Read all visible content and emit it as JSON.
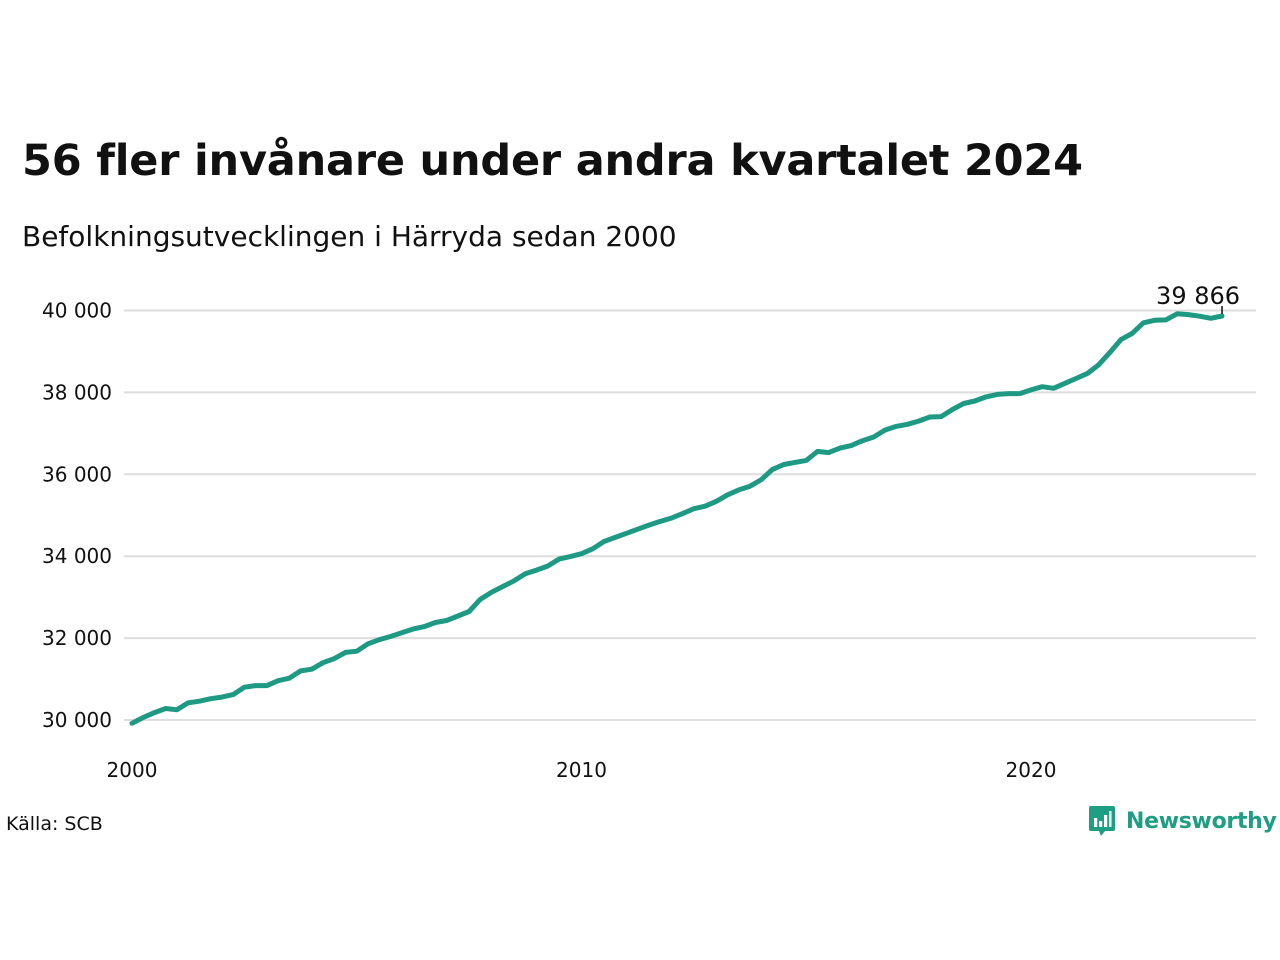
{
  "header": {
    "title": "56 fler invånare under andra kvartalet 2024",
    "subtitle": "Befolkningsutvecklingen i Härryda sedan 2000"
  },
  "footer": {
    "source": "Källa: SCB",
    "brand": "Newsworthy"
  },
  "colors": {
    "line": "#1e9a84",
    "brand": "#1e9f83",
    "grid": "#dddddd",
    "text": "#111111"
  },
  "icons": {
    "brand_logo": "newsworthy-logo-icon"
  },
  "chart_data": {
    "type": "line",
    "title": "56 fler invånare under andra kvartalet 2024",
    "subtitle": "Befolkningsutvecklingen i Härryda sedan 2000",
    "xlabel": "",
    "ylabel": "",
    "x_ticks": [
      2000,
      2010,
      2020
    ],
    "x_tick_labels": [
      "2000",
      "2010",
      "2020"
    ],
    "y_ticks": [
      30000,
      32000,
      34000,
      36000,
      38000,
      40000
    ],
    "y_tick_labels": [
      "30 000",
      "32 000",
      "34 000",
      "36 000",
      "38 000",
      "40 000"
    ],
    "xlim": [
      2000,
      2025.5
    ],
    "ylim": [
      29650,
      40250
    ],
    "grid": "horizontal",
    "legend": "none",
    "end_label": "39 866",
    "series": [
      {
        "x": [
          2000.0,
          2000.25,
          2000.5,
          2000.75,
          2001.0,
          2001.25,
          2001.5,
          2001.75,
          2002.0,
          2002.25,
          2002.5,
          2002.75,
          2003.0,
          2003.25,
          2003.5,
          2003.75,
          2004.0,
          2004.25,
          2004.5,
          2004.75,
          2005.0,
          2005.25,
          2005.5,
          2005.75,
          2006.0,
          2006.25,
          2006.5,
          2006.75,
          2007.0,
          2007.25,
          2007.5,
          2007.75,
          2008.0,
          2008.25,
          2008.5,
          2008.75,
          2009.0,
          2009.25,
          2009.5,
          2009.75,
          2010.0,
          2010.25,
          2010.5,
          2010.75,
          2011.0,
          2011.25,
          2011.5,
          2011.75,
          2012.0,
          2012.25,
          2012.5,
          2012.75,
          2013.0,
          2013.25,
          2013.5,
          2013.75,
          2014.0,
          2014.25,
          2014.5,
          2014.75,
          2015.0,
          2015.25,
          2015.5,
          2015.75,
          2016.0,
          2016.25,
          2016.5,
          2016.75,
          2017.0,
          2017.25,
          2017.5,
          2017.75,
          2018.0,
          2018.25,
          2018.5,
          2018.75,
          2019.0,
          2019.25,
          2019.5,
          2019.75,
          2020.0,
          2020.25,
          2020.5,
          2020.75,
          2021.0,
          2021.25,
          2021.5,
          2021.75,
          2022.0,
          2022.25,
          2022.5,
          2022.75,
          2023.0,
          2023.25,
          2023.5,
          2023.75,
          2024.0,
          2024.25
        ],
        "values": [
          29920,
          30060,
          30180,
          30280,
          30250,
          30420,
          30460,
          30520,
          30560,
          30620,
          30800,
          30840,
          30840,
          30960,
          31020,
          31200,
          31240,
          31400,
          31500,
          31650,
          31680,
          31860,
          31960,
          32040,
          32130,
          32220,
          32280,
          32380,
          32430,
          32540,
          32650,
          32950,
          33120,
          33260,
          33400,
          33570,
          33660,
          33760,
          33930,
          33990,
          34060,
          34180,
          34360,
          34460,
          34560,
          34660,
          34760,
          34850,
          34930,
          35040,
          35160,
          35220,
          35340,
          35500,
          35620,
          35710,
          35870,
          36120,
          36240,
          36290,
          36340,
          36560,
          36530,
          36640,
          36700,
          36820,
          36910,
          37080,
          37170,
          37220,
          37300,
          37400,
          37410,
          37580,
          37730,
          37790,
          37890,
          37950,
          37970,
          37970,
          38060,
          38140,
          38100,
          38220,
          38340,
          38460,
          38670,
          38970,
          39290,
          39440,
          39700,
          39760,
          39770,
          39920,
          39900,
          39860,
          39810,
          39866
        ]
      }
    ]
  }
}
